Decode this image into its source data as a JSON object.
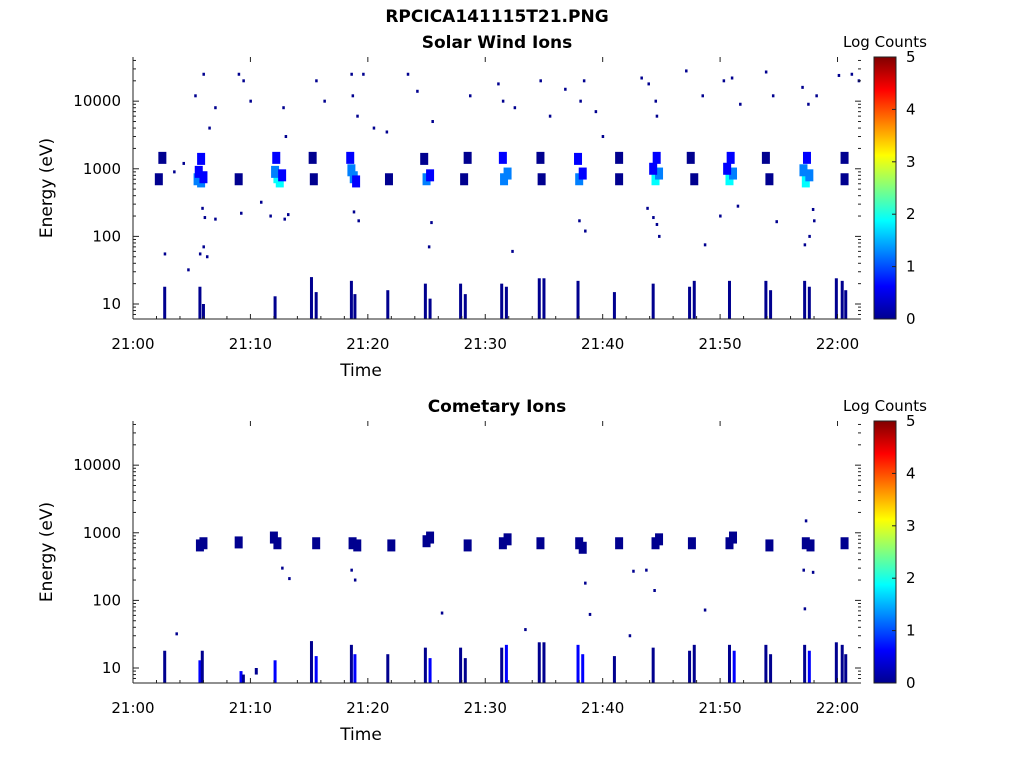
{
  "figure": {
    "title": "RPCICA141115T21.PNG"
  },
  "colormap": [
    "#00008f",
    "#0000ff",
    "#0080ff",
    "#00ffff",
    "#80ff80",
    "#ffff00",
    "#ff8000",
    "#ff0000",
    "#800000"
  ],
  "chart_data": [
    {
      "type": "heatmap",
      "title": "Solar Wind Ions",
      "xlabel": "Time",
      "ylabel": "Energy (eV)",
      "x_ticks": [
        "21:00",
        "21:10",
        "21:20",
        "21:30",
        "21:40",
        "21:50",
        "22:00"
      ],
      "x_range_minutes": [
        0,
        62
      ],
      "y_scale": "log",
      "y_ticks": [
        "10",
        "100",
        "1000",
        "10000"
      ],
      "y_range": [
        6,
        45000
      ],
      "colorbar": {
        "label": "Log Counts",
        "range": [
          0,
          5
        ],
        "ticks": [
          "0",
          "1",
          "2",
          "3",
          "4",
          "5"
        ]
      },
      "grid": false,
      "cells": [
        [
          5.5,
          700,
          1.4
        ],
        [
          5.8,
          650,
          1.1
        ],
        [
          5.6,
          900,
          0.8
        ],
        [
          6.0,
          750,
          0.6
        ],
        [
          5.8,
          1400,
          0.4
        ],
        [
          12.3,
          750,
          2.1
        ],
        [
          12.5,
          650,
          1.7
        ],
        [
          12.1,
          900,
          1.3
        ],
        [
          12.7,
          800,
          0.9
        ],
        [
          12.2,
          1450,
          0.5
        ],
        [
          18.8,
          750,
          1.5
        ],
        [
          18.6,
          950,
          1.0
        ],
        [
          19.0,
          650,
          0.7
        ],
        [
          18.5,
          1450,
          0.4
        ],
        [
          25.0,
          700,
          1.2
        ],
        [
          25.3,
          800,
          0.9
        ],
        [
          24.8,
          1400,
          0.3
        ],
        [
          31.6,
          700,
          1.5
        ],
        [
          31.9,
          850,
          1.0
        ],
        [
          31.5,
          1450,
          0.5
        ],
        [
          38.0,
          700,
          1.3
        ],
        [
          38.3,
          850,
          0.9
        ],
        [
          37.9,
          1400,
          0.4
        ],
        [
          44.5,
          700,
          1.9
        ],
        [
          44.8,
          850,
          1.4
        ],
        [
          44.3,
          1000,
          0.9
        ],
        [
          44.6,
          1450,
          0.4
        ],
        [
          50.8,
          700,
          1.7
        ],
        [
          51.1,
          850,
          1.2
        ],
        [
          50.6,
          1000,
          0.8
        ],
        [
          50.9,
          1450,
          0.4
        ],
        [
          57.3,
          650,
          2.1
        ],
        [
          57.6,
          800,
          1.5
        ],
        [
          57.1,
          950,
          1.0
        ],
        [
          57.4,
          1450,
          0.4
        ],
        [
          2.2,
          700,
          0.2
        ],
        [
          9.0,
          700,
          0.3
        ],
        [
          15.4,
          700,
          0.3
        ],
        [
          21.8,
          700,
          0.3
        ],
        [
          28.2,
          700,
          0.3
        ],
        [
          34.8,
          700,
          0.3
        ],
        [
          41.4,
          700,
          0.3
        ],
        [
          47.8,
          700,
          0.3
        ],
        [
          54.2,
          700,
          0.3
        ],
        [
          60.6,
          700,
          0.3
        ],
        [
          2.5,
          1450,
          0.2
        ],
        [
          15.3,
          1450,
          0.2
        ],
        [
          28.5,
          1450,
          0.2
        ],
        [
          34.7,
          1450,
          0.2
        ],
        [
          41.4,
          1450,
          0.2
        ],
        [
          47.5,
          1450,
          0.2
        ],
        [
          53.9,
          1450,
          0.2
        ],
        [
          60.6,
          1450,
          0.2
        ]
      ],
      "columns": [
        [
          2.7,
          6,
          18,
          0.2
        ],
        [
          5.7,
          6,
          18,
          0.3
        ],
        [
          6.0,
          6,
          10,
          0.2
        ],
        [
          12.1,
          6,
          13,
          0.2
        ],
        [
          15.2,
          6,
          25,
          0.3
        ],
        [
          15.6,
          6,
          15,
          0.2
        ],
        [
          18.6,
          6,
          22,
          0.3
        ],
        [
          18.9,
          6,
          14,
          0.2
        ],
        [
          21.7,
          6,
          16,
          0.2
        ],
        [
          24.9,
          6,
          20,
          0.3
        ],
        [
          25.3,
          6,
          12,
          0.2
        ],
        [
          27.9,
          6,
          20,
          0.3
        ],
        [
          28.3,
          6,
          14,
          0.2
        ],
        [
          31.4,
          6,
          20,
          0.2
        ],
        [
          31.8,
          6,
          18,
          0.3
        ],
        [
          34.6,
          6,
          24,
          0.3
        ],
        [
          35.0,
          6,
          24,
          0.2
        ],
        [
          37.9,
          6,
          22,
          0.3
        ],
        [
          41.0,
          6,
          15,
          0.2
        ],
        [
          44.3,
          6,
          20,
          0.3
        ],
        [
          47.4,
          6,
          18,
          0.2
        ],
        [
          47.8,
          6,
          22,
          0.2
        ],
        [
          50.8,
          6,
          22,
          0.3
        ],
        [
          53.9,
          6,
          22,
          0.3
        ],
        [
          54.3,
          6,
          16,
          0.2
        ],
        [
          57.2,
          6,
          22,
          0.3
        ],
        [
          57.6,
          6,
          18,
          0.2
        ],
        [
          59.9,
          6,
          24,
          0.3
        ],
        [
          60.4,
          6,
          22,
          0.2
        ],
        [
          60.7,
          6,
          16,
          0.2
        ]
      ],
      "dots": [
        [
          4.7,
          32
        ],
        [
          2.7,
          55
        ],
        [
          5.7,
          55
        ],
        [
          6.0,
          70
        ],
        [
          6.3,
          50
        ],
        [
          5.9,
          260
        ],
        [
          6.1,
          190
        ],
        [
          7.0,
          180
        ],
        [
          9.2,
          220
        ],
        [
          10.9,
          320
        ],
        [
          11.7,
          200
        ],
        [
          12.9,
          180
        ],
        [
          13.2,
          210
        ],
        [
          18.8,
          230
        ],
        [
          19.2,
          170
        ],
        [
          25.4,
          160
        ],
        [
          25.2,
          70
        ],
        [
          32.3,
          60
        ],
        [
          38.0,
          170
        ],
        [
          38.5,
          120
        ],
        [
          43.8,
          260
        ],
        [
          44.3,
          190
        ],
        [
          44.6,
          150
        ],
        [
          44.8,
          100
        ],
        [
          48.7,
          75
        ],
        [
          50.0,
          200
        ],
        [
          51.5,
          280
        ],
        [
          54.8,
          165
        ],
        [
          57.2,
          75
        ],
        [
          57.6,
          100
        ],
        [
          57.9,
          250
        ],
        [
          58.0,
          170
        ],
        [
          6.0,
          25000
        ],
        [
          7.0,
          8000
        ],
        [
          5.3,
          12000
        ],
        [
          6.5,
          4000
        ],
        [
          9.0,
          25000
        ],
        [
          9.4,
          20000
        ],
        [
          10.0,
          10000
        ],
        [
          12.8,
          8000
        ],
        [
          13.0,
          3000
        ],
        [
          15.6,
          20000
        ],
        [
          16.3,
          10000
        ],
        [
          18.6,
          25000
        ],
        [
          18.7,
          12000
        ],
        [
          19.1,
          6000
        ],
        [
          19.6,
          25000
        ],
        [
          20.5,
          4000
        ],
        [
          21.6,
          3500
        ],
        [
          23.4,
          25000
        ],
        [
          24.2,
          14000
        ],
        [
          25.5,
          5000
        ],
        [
          28.7,
          12000
        ],
        [
          31.1,
          18000
        ],
        [
          31.5,
          10000
        ],
        [
          32.5,
          8000
        ],
        [
          34.7,
          20000
        ],
        [
          35.5,
          6000
        ],
        [
          36.8,
          15000
        ],
        [
          38.1,
          10000
        ],
        [
          38.4,
          20000
        ],
        [
          39.4,
          7000
        ],
        [
          43.3,
          22000
        ],
        [
          43.9,
          18000
        ],
        [
          44.5,
          10000
        ],
        [
          44.6,
          6000
        ],
        [
          47.1,
          28000
        ],
        [
          48.5,
          12000
        ],
        [
          50.3,
          20000
        ],
        [
          51.0,
          22000
        ],
        [
          51.7,
          9000
        ],
        [
          53.9,
          27000
        ],
        [
          54.5,
          12000
        ],
        [
          57.0,
          16000
        ],
        [
          57.5,
          9000
        ],
        [
          58.2,
          12000
        ],
        [
          61.2,
          25000
        ],
        [
          61.8,
          20000
        ],
        [
          60.1,
          24000
        ],
        [
          3.5,
          900
        ],
        [
          4.3,
          1200
        ],
        [
          40.0,
          3000
        ]
      ]
    },
    {
      "type": "heatmap",
      "title": "Cometary Ions",
      "xlabel": "Time",
      "ylabel": "Energy (eV)",
      "x_ticks": [
        "21:00",
        "21:10",
        "21:20",
        "21:30",
        "21:40",
        "21:50",
        "22:00"
      ],
      "x_range_minutes": [
        0,
        62
      ],
      "y_scale": "log",
      "y_ticks": [
        "10",
        "100",
        "1000",
        "10000"
      ],
      "y_range": [
        6,
        45000
      ],
      "colorbar": {
        "label": "Log Counts",
        "range": [
          0,
          5
        ],
        "ticks": [
          "0",
          "1",
          "2",
          "3",
          "4",
          "5"
        ]
      },
      "grid": false,
      "cells": [
        [
          5.7,
          650,
          0.3
        ],
        [
          6.0,
          700,
          0.2
        ],
        [
          9.0,
          720,
          0.2
        ],
        [
          12.3,
          700,
          0.3
        ],
        [
          12.0,
          850,
          0.2
        ],
        [
          15.6,
          700,
          0.2
        ],
        [
          18.7,
          700,
          0.3
        ],
        [
          19.1,
          650,
          0.2
        ],
        [
          22.0,
          650,
          0.2
        ],
        [
          25.0,
          750,
          0.3
        ],
        [
          25.3,
          850,
          0.2
        ],
        [
          28.5,
          650,
          0.2
        ],
        [
          31.5,
          700,
          0.3
        ],
        [
          31.9,
          800,
          0.2
        ],
        [
          34.7,
          700,
          0.2
        ],
        [
          38.0,
          700,
          0.3
        ],
        [
          38.3,
          600,
          0.2
        ],
        [
          41.4,
          700,
          0.2
        ],
        [
          44.5,
          700,
          0.3
        ],
        [
          44.8,
          800,
          0.2
        ],
        [
          47.6,
          700,
          0.2
        ],
        [
          50.8,
          700,
          0.3
        ],
        [
          51.1,
          850,
          0.2
        ],
        [
          54.2,
          650,
          0.2
        ],
        [
          57.3,
          700,
          0.3
        ],
        [
          57.7,
          650,
          0.2
        ],
        [
          60.6,
          700,
          0.2
        ]
      ],
      "columns": [
        [
          2.7,
          6,
          18,
          0.2
        ],
        [
          5.7,
          6,
          13,
          0.9
        ],
        [
          5.9,
          6,
          18,
          0.3
        ],
        [
          9.2,
          6,
          9,
          0.9
        ],
        [
          12.1,
          6,
          13,
          0.9
        ],
        [
          15.2,
          6,
          25,
          0.3
        ],
        [
          15.6,
          6,
          15,
          0.5
        ],
        [
          18.6,
          6,
          22,
          0.3
        ],
        [
          18.9,
          6,
          16,
          0.8
        ],
        [
          21.7,
          6,
          16,
          0.2
        ],
        [
          24.9,
          6,
          20,
          0.3
        ],
        [
          25.3,
          6,
          14,
          0.7
        ],
        [
          27.9,
          6,
          20,
          0.3
        ],
        [
          28.3,
          6,
          14,
          0.2
        ],
        [
          31.4,
          6,
          20,
          0.3
        ],
        [
          31.8,
          6,
          22,
          0.7
        ],
        [
          34.6,
          6,
          24,
          0.3
        ],
        [
          35.0,
          6,
          24,
          0.3
        ],
        [
          37.9,
          6,
          22,
          0.4
        ],
        [
          38.3,
          6,
          16,
          0.7
        ],
        [
          41.0,
          6,
          15,
          0.2
        ],
        [
          44.3,
          6,
          20,
          0.3
        ],
        [
          47.4,
          6,
          18,
          0.2
        ],
        [
          47.8,
          6,
          22,
          0.2
        ],
        [
          50.8,
          6,
          22,
          0.3
        ],
        [
          51.2,
          6,
          18,
          0.7
        ],
        [
          53.9,
          6,
          22,
          0.3
        ],
        [
          54.3,
          6,
          16,
          0.2
        ],
        [
          57.2,
          6,
          22,
          0.3
        ],
        [
          57.6,
          6,
          18,
          0.7
        ],
        [
          59.9,
          6,
          24,
          0.3
        ],
        [
          60.4,
          6,
          22,
          0.3
        ],
        [
          60.7,
          6,
          16,
          0.2
        ],
        [
          10.5,
          8,
          10,
          0.2
        ],
        [
          9.4,
          6,
          8,
          0.2
        ]
      ],
      "dots": [
        [
          3.7,
          32
        ],
        [
          12.7,
          300
        ],
        [
          13.3,
          210
        ],
        [
          18.6,
          280
        ],
        [
          18.9,
          200
        ],
        [
          26.3,
          65
        ],
        [
          33.4,
          37
        ],
        [
          38.5,
          180
        ],
        [
          38.9,
          62
        ],
        [
          42.6,
          270
        ],
        [
          42.3,
          30
        ],
        [
          43.7,
          280
        ],
        [
          44.4,
          140
        ],
        [
          48.7,
          72
        ],
        [
          57.1,
          280
        ],
        [
          57.2,
          75
        ],
        [
          57.9,
          260
        ],
        [
          57.3,
          1500
        ]
      ]
    }
  ]
}
